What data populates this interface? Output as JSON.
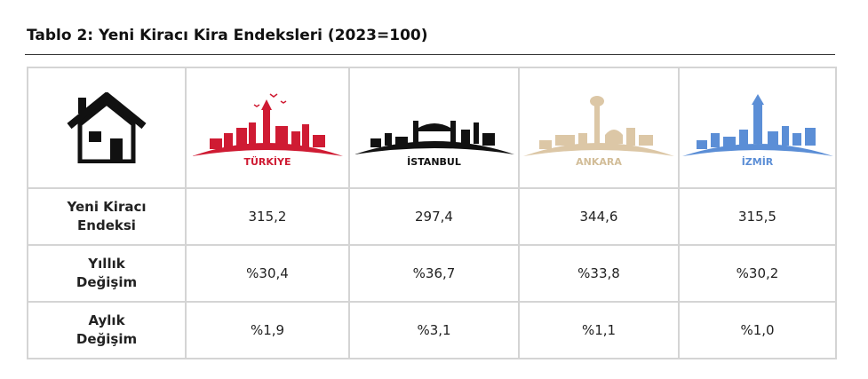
{
  "title": "Tablo 2: Yeni Kiracı Kira Endeksleri (2023=100)",
  "table": {
    "columns": [
      "TÜRKİYE",
      "İSTANBUL",
      "ANKARA",
      "İZMİR"
    ],
    "rows": [
      {
        "label": [
          "Yeni Kiracı",
          "Endeksi"
        ],
        "cells": [
          "315,2",
          "297,4",
          "344,6",
          "315,5"
        ]
      },
      {
        "label": [
          "Yıllık",
          "Değişim"
        ],
        "cells": [
          "%30,4",
          "%36,7",
          "%33,8",
          "%30,2"
        ]
      },
      {
        "label": [
          "Aylık",
          "Değişim"
        ],
        "cells": [
          "%1,9",
          "%3,1",
          "%1,1",
          "%1,0"
        ]
      }
    ]
  }
}
